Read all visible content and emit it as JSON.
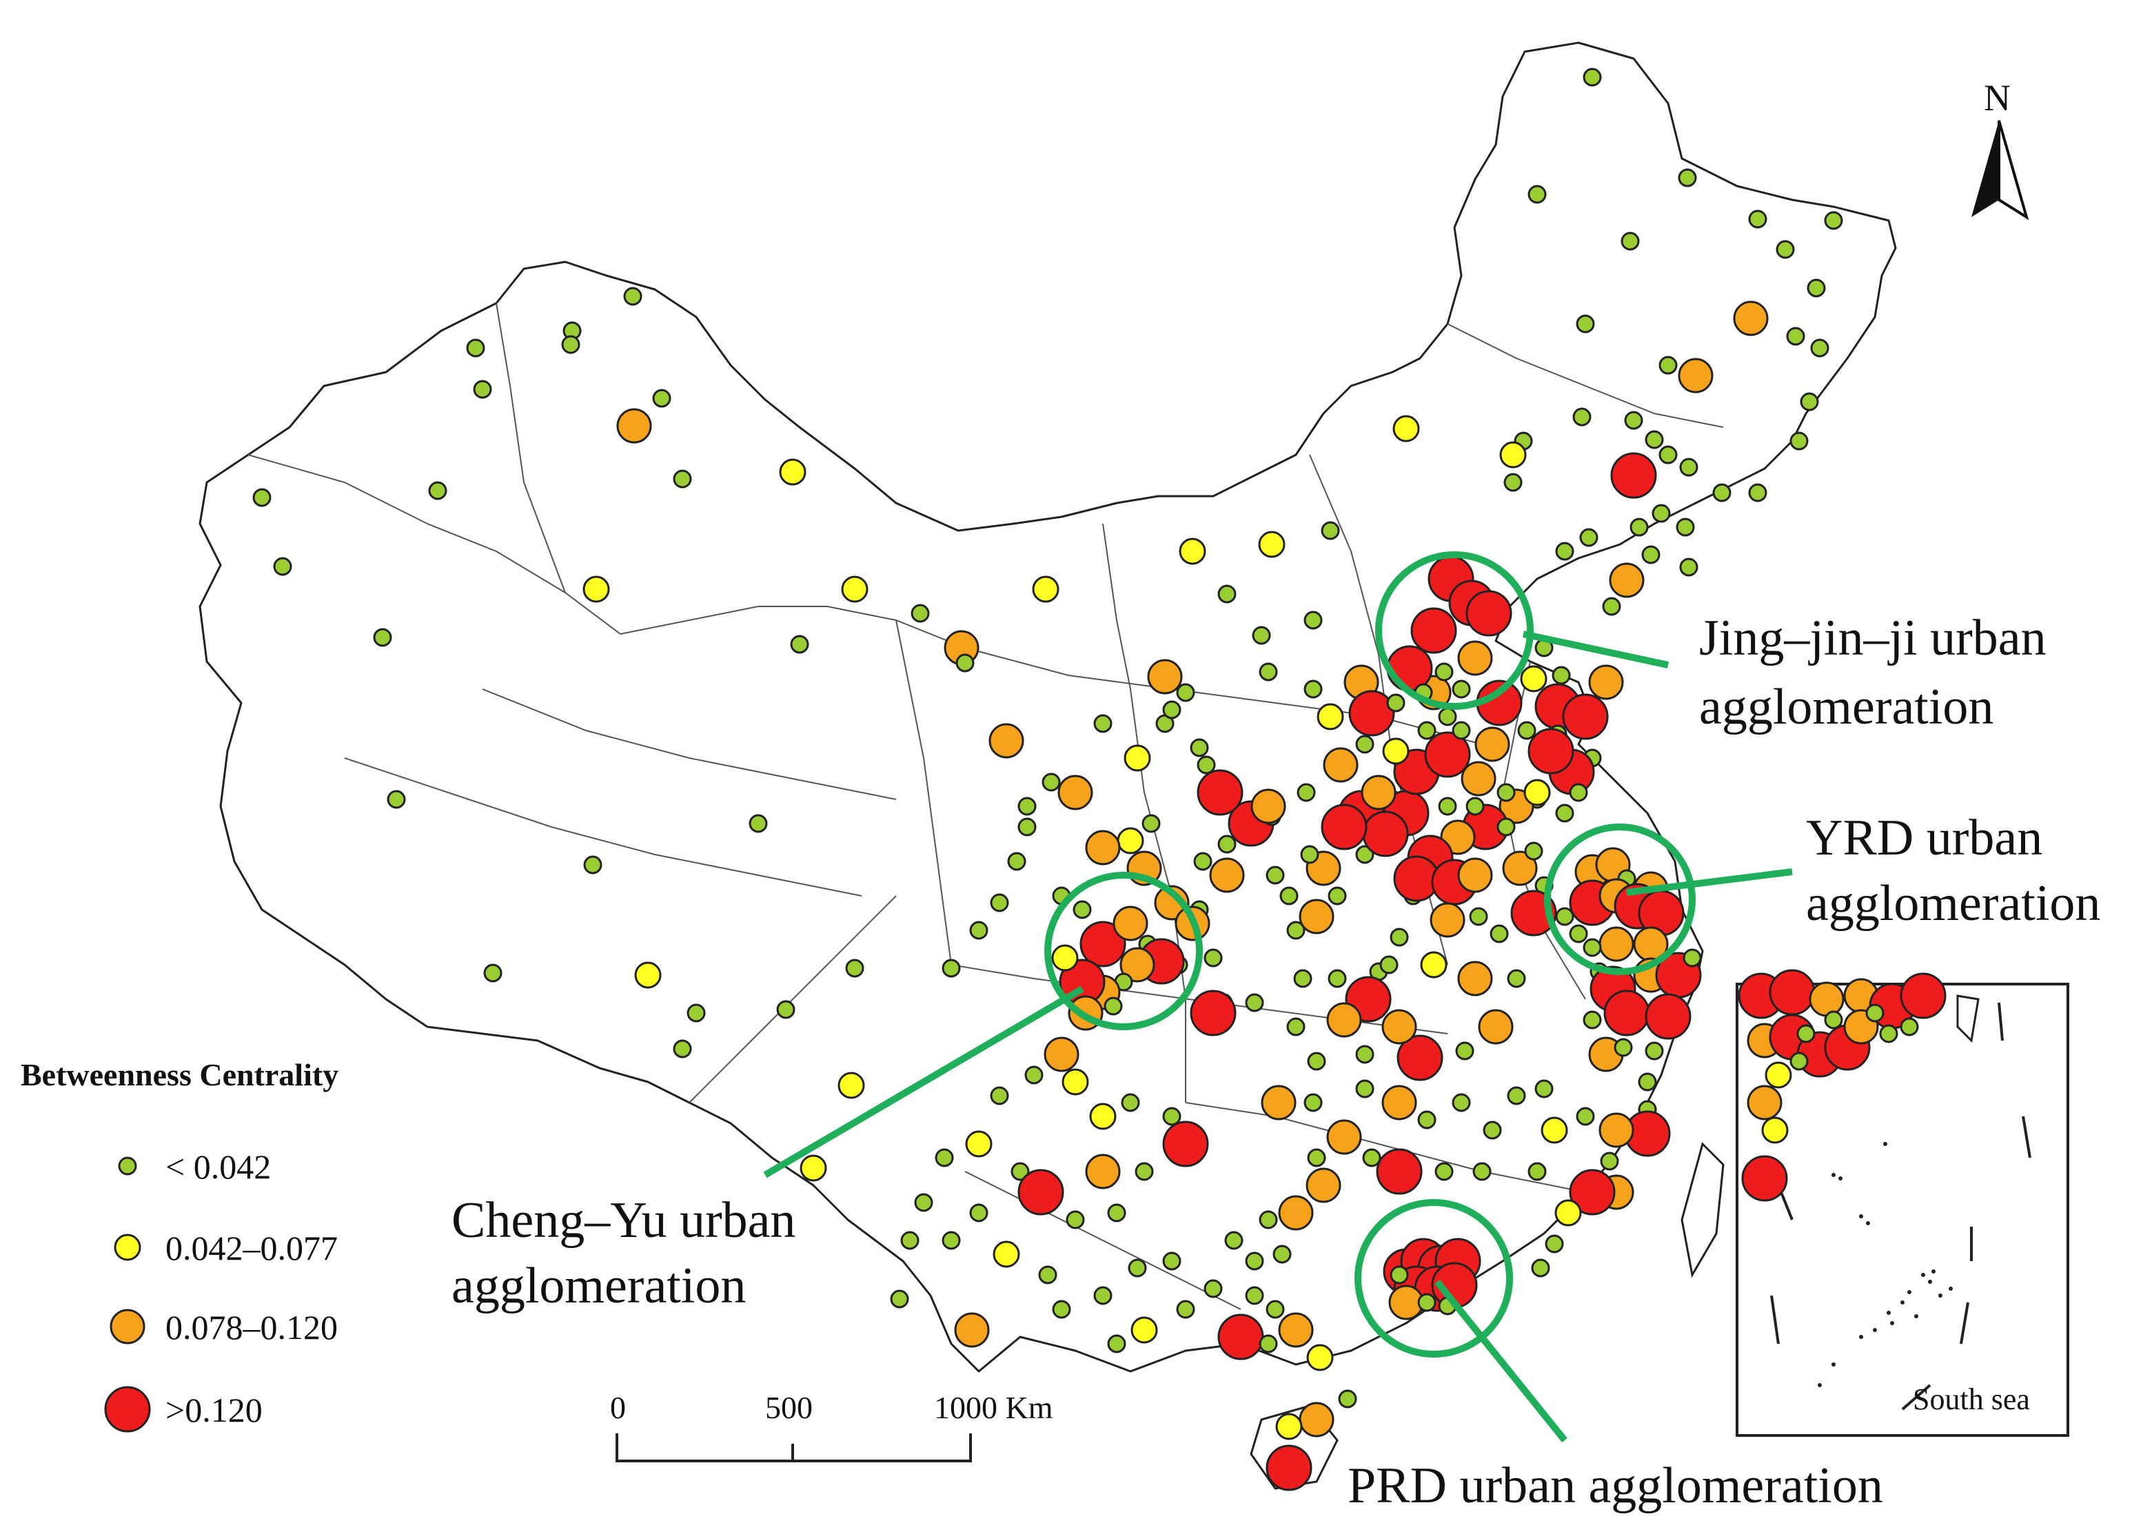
{
  "map": {
    "north_label": "N",
    "colors": {
      "boundary": "#222222",
      "green_callout": "#1fae5a",
      "class_small": "#9acd32",
      "class_low": "#ffff22",
      "class_mid": "#f7a21b",
      "class_high": "#ee1c1c",
      "marker_stroke": "#222222"
    }
  },
  "legend": {
    "title": "Betweenness Centrality",
    "items": [
      {
        "label": "< 0.042",
        "class": "small"
      },
      {
        "label": "0.042–0.077",
        "class": "low"
      },
      {
        "label": "0.078–0.120",
        "class": "mid"
      },
      {
        "label": ">0.120",
        "class": "high"
      }
    ]
  },
  "scalebar": {
    "ticks": [
      "0",
      "500",
      "1000 Km"
    ]
  },
  "annotations": {
    "jjj_line1": "Jing–jin–ji urban",
    "jjj_line2": "agglomeration",
    "yrd_line1": "YRD urban",
    "yrd_line2": "agglomeration",
    "cy_line1": "Cheng–Yu urban",
    "cy_line2": "agglomeration",
    "prd": "PRD urban agglomeration"
  },
  "inset": {
    "label": "South sea"
  }
}
